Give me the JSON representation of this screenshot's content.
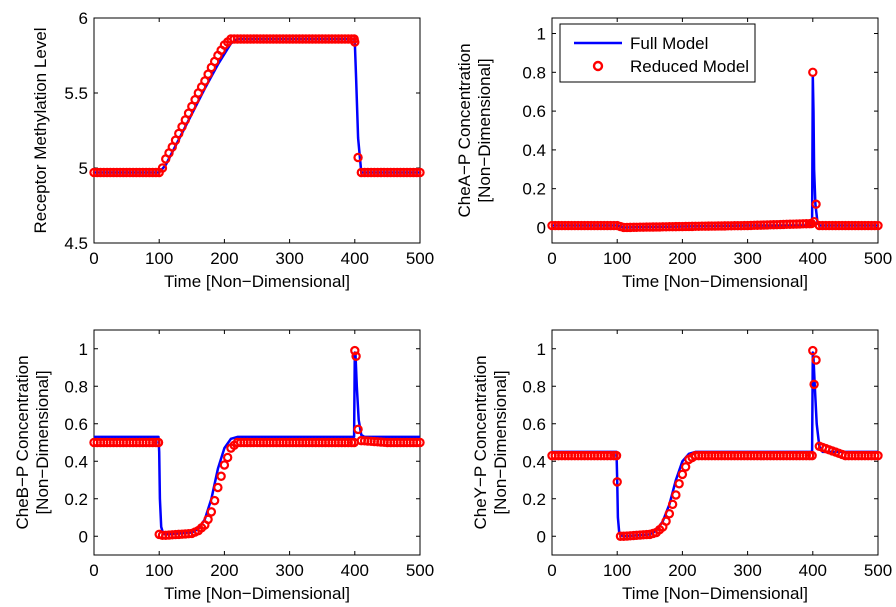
{
  "figure": {
    "legend_full_label": "Full Model",
    "legend_reduced_label": "Reduced Model",
    "colors": {
      "full": "#0000ff",
      "reduced": "#ff0000",
      "axes": "#000000",
      "background": "#ffffff"
    }
  },
  "chart_data": [
    {
      "type": "line",
      "xlabel": "Time [Non−Dimensional]",
      "ylabel": [
        "Receptor Methylation Level"
      ],
      "xlim": [
        0,
        500
      ],
      "ylim": [
        4.5,
        6
      ],
      "xticks": [
        0,
        100,
        200,
        300,
        400,
        500
      ],
      "yticks": [
        4.5,
        5,
        5.5,
        6
      ],
      "ytick_labels": [
        "4.5",
        "5",
        "5.5",
        "6"
      ],
      "legend": "none",
      "series": [
        {
          "name": "Full Model",
          "x": [
            0,
            100,
            110,
            130,
            150,
            170,
            190,
            210,
            220,
            300,
            399,
            400,
            402,
            405,
            410,
            500
          ],
          "y": [
            4.97,
            4.97,
            5.02,
            5.19,
            5.36,
            5.53,
            5.69,
            5.83,
            5.86,
            5.86,
            5.86,
            5.84,
            5.6,
            5.2,
            4.97,
            4.97
          ]
        },
        {
          "name": "Reduced Model",
          "x": [
            0,
            100,
            105,
            110,
            120,
            130,
            140,
            150,
            160,
            170,
            180,
            190,
            200,
            210,
            220,
            230,
            300,
            399,
            400,
            405,
            410,
            450,
            500
          ],
          "y": [
            4.97,
            4.97,
            5.0,
            5.06,
            5.14,
            5.23,
            5.32,
            5.41,
            5.5,
            5.58,
            5.67,
            5.75,
            5.82,
            5.86,
            5.86,
            5.86,
            5.86,
            5.86,
            5.84,
            5.07,
            4.97,
            4.97,
            4.97
          ]
        }
      ]
    },
    {
      "type": "line",
      "xlabel": "Time [Non−Dimensional]",
      "ylabel": [
        "CheA−P Concentration",
        "[Non−Dimensional]"
      ],
      "xlim": [
        0,
        500
      ],
      "ylim": [
        -0.08,
        1.08
      ],
      "xticks": [
        0,
        100,
        200,
        300,
        400,
        500
      ],
      "yticks": [
        0,
        0.2,
        0.4,
        0.6,
        0.8,
        1
      ],
      "ytick_labels": [
        "0",
        "0.2",
        "0.4",
        "0.6",
        "0.8",
        "1"
      ],
      "legend": "top-left",
      "series": [
        {
          "name": "Full Model",
          "x": [
            0,
            100,
            110,
            200,
            300,
            398,
            399,
            400,
            401,
            402,
            404,
            407,
            410,
            500
          ],
          "y": [
            0.01,
            0.01,
            0.0,
            0.005,
            0.01,
            0.01,
            0.02,
            0.78,
            0.6,
            0.3,
            0.12,
            0.03,
            0.01,
            0.01
          ]
        },
        {
          "name": "Reduced Model",
          "x": [
            0,
            100,
            110,
            200,
            300,
            398,
            400,
            402,
            405,
            410,
            500
          ],
          "y": [
            0.01,
            0.01,
            0.0,
            0.005,
            0.01,
            0.02,
            0.8,
            0.03,
            0.12,
            0.01,
            0.01
          ]
        }
      ]
    },
    {
      "type": "line",
      "xlabel": "Time [Non−Dimensional]",
      "ylabel": [
        "CheB−P Concentration",
        "[Non−Dimensional]"
      ],
      "xlim": [
        0,
        500
      ],
      "ylim": [
        -0.1,
        1.1
      ],
      "xticks": [
        0,
        100,
        200,
        300,
        400,
        500
      ],
      "yticks": [
        0,
        0.2,
        0.4,
        0.6,
        0.8,
        1
      ],
      "ytick_labels": [
        "0",
        "0.2",
        "0.4",
        "0.6",
        "0.8",
        "1"
      ],
      "legend": "none",
      "series": [
        {
          "name": "Full Model",
          "x": [
            0,
            99,
            100,
            101,
            103,
            106,
            110,
            150,
            160,
            170,
            180,
            190,
            200,
            210,
            220,
            300,
            399,
            400,
            401,
            403,
            406,
            410,
            415,
            500
          ],
          "y": [
            0.53,
            0.53,
            0.45,
            0.2,
            0.05,
            0.015,
            0.01,
            0.02,
            0.04,
            0.09,
            0.2,
            0.36,
            0.47,
            0.52,
            0.53,
            0.53,
            0.53,
            0.98,
            0.97,
            0.8,
            0.62,
            0.54,
            0.53,
            0.53
          ]
        },
        {
          "name": "Reduced Model",
          "x": [
            0,
            99,
            100,
            105,
            110,
            150,
            160,
            170,
            175,
            180,
            185,
            190,
            195,
            200,
            205,
            210,
            220,
            300,
            399,
            400,
            402,
            405,
            410,
            450,
            500
          ],
          "y": [
            0.5,
            0.5,
            0.01,
            0.005,
            0.005,
            0.015,
            0.03,
            0.06,
            0.09,
            0.13,
            0.19,
            0.26,
            0.32,
            0.38,
            0.42,
            0.47,
            0.5,
            0.5,
            0.5,
            0.99,
            0.96,
            0.57,
            0.51,
            0.5,
            0.5
          ]
        }
      ]
    },
    {
      "type": "line",
      "xlabel": "Time [Non−Dimensional]",
      "ylabel": [
        "CheY−P Concentration",
        "[Non−Dimensional]"
      ],
      "xlim": [
        0,
        500
      ],
      "ylim": [
        -0.1,
        1.1
      ],
      "xticks": [
        0,
        100,
        200,
        300,
        400,
        500
      ],
      "yticks": [
        0,
        0.2,
        0.4,
        0.6,
        0.8,
        1
      ],
      "ytick_labels": [
        "0",
        "0.2",
        "0.4",
        "0.6",
        "0.8",
        "1"
      ],
      "legend": "none",
      "series": [
        {
          "name": "Full Model",
          "x": [
            0,
            99,
            100,
            101,
            103,
            106,
            110,
            150,
            160,
            170,
            180,
            190,
            200,
            210,
            220,
            300,
            399,
            400,
            401,
            403,
            406,
            410,
            415,
            500
          ],
          "y": [
            0.45,
            0.45,
            0.3,
            0.1,
            0.02,
            0.005,
            0.0,
            0.01,
            0.03,
            0.08,
            0.17,
            0.3,
            0.4,
            0.44,
            0.45,
            0.45,
            0.45,
            0.98,
            0.95,
            0.8,
            0.6,
            0.48,
            0.45,
            0.45
          ]
        },
        {
          "name": "Reduced Model",
          "x": [
            0,
            99,
            100,
            105,
            110,
            150,
            160,
            170,
            175,
            180,
            185,
            190,
            195,
            200,
            205,
            210,
            220,
            300,
            399,
            400,
            402,
            405,
            410,
            450,
            500
          ],
          "y": [
            0.43,
            0.43,
            0.29,
            0.0,
            0.0,
            0.01,
            0.02,
            0.05,
            0.08,
            0.12,
            0.17,
            0.22,
            0.28,
            0.33,
            0.37,
            0.41,
            0.43,
            0.43,
            0.43,
            0.99,
            0.81,
            0.94,
            0.48,
            0.43,
            0.43
          ]
        }
      ]
    }
  ]
}
